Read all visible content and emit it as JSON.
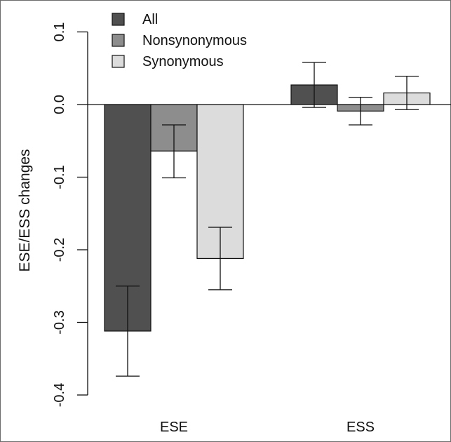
{
  "chart_data": {
    "type": "bar",
    "categories": [
      "ESE",
      "ESS"
    ],
    "series": [
      {
        "name": "All",
        "values": [
          -0.312,
          0.027
        ],
        "err_low": [
          -0.374,
          -0.004
        ],
        "err_high": [
          -0.25,
          0.058
        ],
        "color": "#505050"
      },
      {
        "name": "Nonsynonymous",
        "values": [
          -0.064,
          -0.009
        ],
        "err_low": [
          -0.101,
          -0.028
        ],
        "err_high": [
          -0.028,
          0.01
        ],
        "color": "#8d8d8d"
      },
      {
        "name": "Synonymous",
        "values": [
          -0.212,
          0.016
        ],
        "err_low": [
          -0.255,
          -0.007
        ],
        "err_high": [
          -0.169,
          0.039
        ],
        "color": "#dcdcdc"
      }
    ],
    "title": "",
    "xlabel": "",
    "ylabel": "ESE/ESS changes",
    "ylim": [
      -0.4,
      0.1
    ],
    "yticks": [
      -0.4,
      -0.3,
      -0.2,
      -0.1,
      0.0,
      0.1
    ],
    "ytick_labels": [
      "-0.4",
      "-0.3",
      "-0.2",
      "-0.1",
      "0.0",
      "0.1"
    ],
    "zero_line": true,
    "grid": false,
    "legend_position": "top-left"
  }
}
